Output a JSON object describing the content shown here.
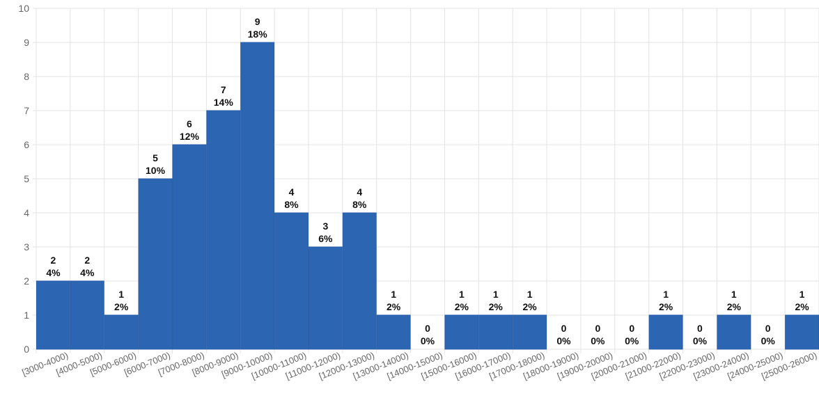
{
  "chart_data": {
    "type": "bar",
    "title": "",
    "xlabel": "",
    "ylabel": "",
    "ylim": [
      0,
      10
    ],
    "yticks": [
      0,
      1,
      2,
      3,
      4,
      5,
      6,
      7,
      8,
      9,
      10
    ],
    "grid": true,
    "legend": "none",
    "bar_color": "#2c66b2",
    "categories": [
      "[3000-4000)",
      "[4000-5000)",
      "[5000-6000)",
      "[6000-7000)",
      "[7000-8000)",
      "[8000-9000)",
      "[9000-10000)",
      "[10000-11000)",
      "[11000-12000)",
      "[12000-13000)",
      "[13000-14000)",
      "[14000-15000)",
      "[15000-16000)",
      "[16000-17000)",
      "[17000-18000)",
      "[18000-19000)",
      "[19000-20000)",
      "[20000-21000)",
      "[21000-22000)",
      "[22000-23000)",
      "[23000-24000)",
      "[24000-25000)",
      "[25000-26000)"
    ],
    "values": [
      2,
      2,
      1,
      5,
      6,
      7,
      9,
      4,
      3,
      4,
      1,
      0,
      1,
      1,
      1,
      0,
      0,
      0,
      1,
      0,
      1,
      0,
      1
    ],
    "percent_labels": [
      "4%",
      "4%",
      "2%",
      "10%",
      "12%",
      "14%",
      "18%",
      "8%",
      "6%",
      "8%",
      "2%",
      "0%",
      "2%",
      "2%",
      "2%",
      "0%",
      "0%",
      "0%",
      "2%",
      "0%",
      "2%",
      "0%",
      "2%"
    ]
  }
}
